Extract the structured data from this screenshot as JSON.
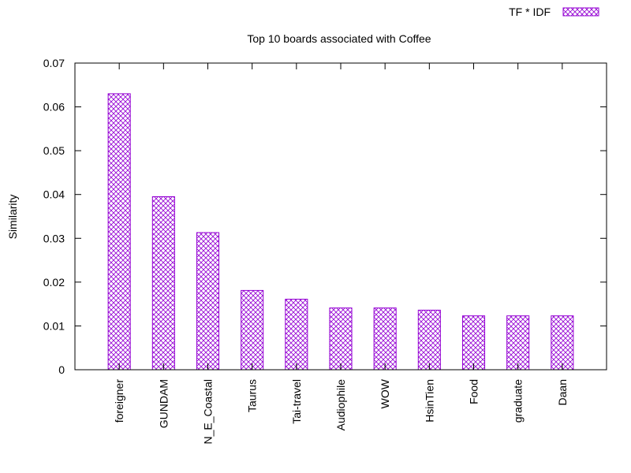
{
  "chart_data": {
    "type": "bar",
    "title": "Top 10 boards associated with Coffee",
    "xlabel": "",
    "ylabel": "Similarity",
    "categories": [
      "foreigner",
      "GUNDAM",
      "N_E_Coastal",
      "Taurus",
      "Tai-travel",
      "Audiophile",
      "WOW",
      "HsinTien",
      "Food",
      "graduate",
      "Daan"
    ],
    "series": [
      {
        "name": "TF * IDF",
        "values": [
          0.063,
          0.0395,
          0.0313,
          0.0181,
          0.0161,
          0.0141,
          0.0141,
          0.0136,
          0.0123,
          0.0123,
          0.0123
        ]
      }
    ],
    "ylim": [
      0,
      0.07
    ],
    "yticks": [
      "0",
      "0.01",
      "0.02",
      "0.03",
      "0.04",
      "0.05",
      "0.06",
      "0.07"
    ],
    "legend_position": "top-right",
    "grid": false,
    "colors": {
      "bar": "#9400d3",
      "axis": "#000000"
    }
  }
}
